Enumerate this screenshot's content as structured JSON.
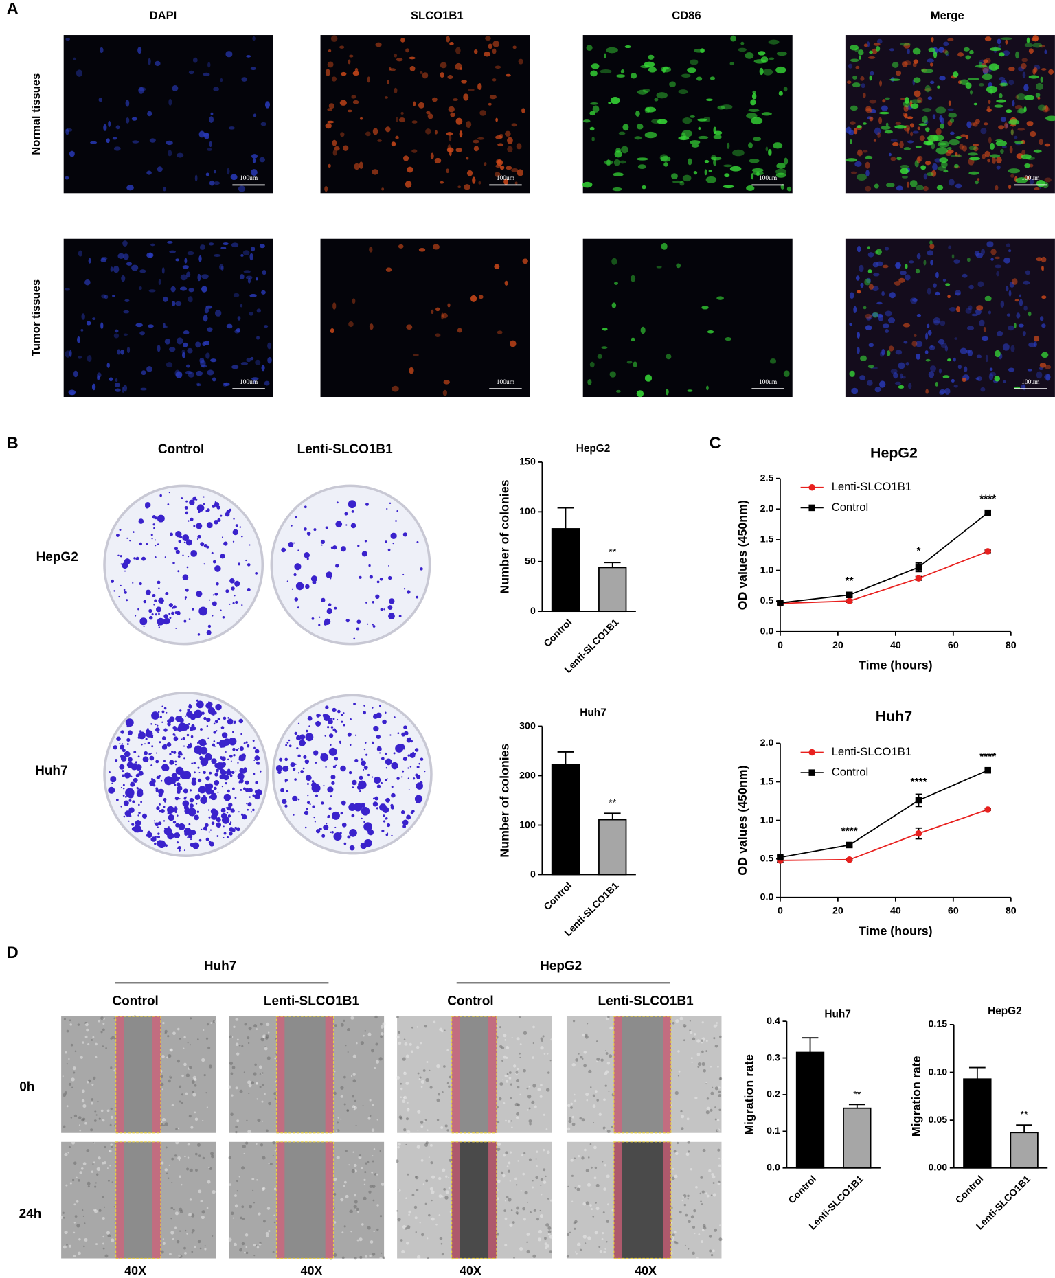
{
  "panel_labels": [
    "A",
    "B",
    "C",
    "D"
  ],
  "panel_a": {
    "columns": [
      "DAPI",
      "SLCO1B1",
      "CD86",
      "Merge"
    ],
    "rows": [
      "Normal tissues",
      "Tumor tissues"
    ],
    "scale_bar": "100um"
  },
  "panel_b": {
    "columns": [
      "Control",
      "Lenti-SLCO1B1"
    ],
    "rows": [
      "HepG2",
      "Huh7"
    ]
  },
  "panel_d": {
    "groups": [
      "Huh7",
      "HepG2"
    ],
    "columns": [
      "Control",
      "Lenti-SLCO1B1",
      "Control",
      "Lenti-SLCO1B1"
    ],
    "rows": [
      "0h",
      "24h"
    ],
    "magnification": "40X"
  },
  "chart_data": [
    {
      "type": "bar",
      "title": "HepG2",
      "ylabel": "Number of colonies",
      "categories": [
        "Control",
        "Lenti-SLCO1B1"
      ],
      "values": [
        83,
        44
      ],
      "errors": [
        21,
        5
      ],
      "annotations": [
        null,
        "**"
      ],
      "colors": [
        "#000000",
        "#a6a6a6"
      ],
      "ylim": [
        0,
        150
      ],
      "yticks": [
        0,
        50,
        100,
        150
      ]
    },
    {
      "type": "bar",
      "title": "Huh7",
      "ylabel": "Number of colonies",
      "categories": [
        "Control",
        "Lenti-SLCO1B1"
      ],
      "values": [
        222,
        111
      ],
      "errors": [
        26,
        13
      ],
      "annotations": [
        null,
        "**"
      ],
      "colors": [
        "#000000",
        "#a6a6a6"
      ],
      "ylim": [
        0,
        300
      ],
      "yticks": [
        0,
        100,
        200,
        300
      ]
    },
    {
      "type": "line",
      "title": "HepG2",
      "xlabel": "Time (hours)",
      "ylabel": "OD values (450nm)",
      "x": [
        0,
        24,
        48,
        72
      ],
      "annotations": [
        null,
        "**",
        "*",
        "****"
      ],
      "legend": "upper left",
      "series": [
        {
          "name": "Lenti-SLCO1B1",
          "color": "#e8201e",
          "marker": "circle",
          "values": [
            0.46,
            0.5,
            0.87,
            1.31
          ],
          "errors": [
            0.02,
            0.02,
            0.03,
            0.02
          ]
        },
        {
          "name": "Control",
          "color": "#000000",
          "marker": "square",
          "values": [
            0.47,
            0.6,
            1.05,
            1.94
          ],
          "errors": [
            0.02,
            0.03,
            0.07,
            0.03
          ]
        }
      ],
      "xlim": [
        0,
        80
      ],
      "xticks": [
        0,
        20,
        40,
        60,
        80
      ],
      "ylim": [
        0,
        2.5
      ],
      "yticks": [
        {
          "value": 0,
          "label": "0.0"
        },
        0.5,
        {
          "value": 1,
          "label": "1.0"
        },
        1.5,
        {
          "value": 2,
          "label": "2.0"
        },
        2.5
      ]
    },
    {
      "type": "line",
      "title": "Huh7",
      "xlabel": "Time (hours)",
      "ylabel": "OD values (450nm)",
      "x": [
        0,
        24,
        48,
        72
      ],
      "annotations": [
        null,
        "****",
        "****",
        "****"
      ],
      "legend": "upper left",
      "series": [
        {
          "name": "Lenti-SLCO1B1",
          "color": "#e8201e",
          "marker": "circle",
          "values": [
            0.48,
            0.49,
            0.83,
            1.14
          ],
          "errors": [
            0.02,
            0.01,
            0.07,
            0.01
          ]
        },
        {
          "name": "Control",
          "color": "#000000",
          "marker": "square",
          "values": [
            0.52,
            0.68,
            1.26,
            1.65
          ],
          "errors": [
            0.02,
            0.02,
            0.08,
            0.02
          ]
        }
      ],
      "xlim": [
        0,
        80
      ],
      "xticks": [
        0,
        20,
        40,
        60,
        80
      ],
      "ylim": [
        0,
        2
      ],
      "yticks": [
        {
          "value": 0,
          "label": "0.0"
        },
        0.5,
        {
          "value": 1,
          "label": "1.0"
        },
        1.5,
        {
          "value": 2,
          "label": "2.0"
        }
      ]
    },
    {
      "type": "bar",
      "title": "Huh7",
      "ylabel": "Migration rate",
      "categories": [
        "Control",
        "Lenti-SLCO1B1"
      ],
      "values": [
        0.315,
        0.163
      ],
      "errors": [
        0.04,
        0.01
      ],
      "annotations": [
        null,
        "**"
      ],
      "colors": [
        "#000000",
        "#a6a6a6"
      ],
      "ylim": [
        0,
        0.4
      ],
      "yticks": [
        {
          "value": 0,
          "label": "0.0"
        },
        0.1,
        0.2,
        0.3,
        0.4
      ]
    },
    {
      "type": "bar",
      "title": "HepG2",
      "ylabel": "Migration rate",
      "categories": [
        "Control",
        "Lenti-SLCO1B1"
      ],
      "values": [
        0.093,
        0.037
      ],
      "errors": [
        0.012,
        0.008
      ],
      "annotations": [
        null,
        "**"
      ],
      "colors": [
        "#000000",
        "#a6a6a6"
      ],
      "ylim": [
        0,
        0.15
      ],
      "yticks": [
        {
          "value": 0,
          "label": "0.00"
        },
        0.05,
        {
          "value": 0.1,
          "label": "0.10"
        },
        0.15
      ]
    }
  ]
}
